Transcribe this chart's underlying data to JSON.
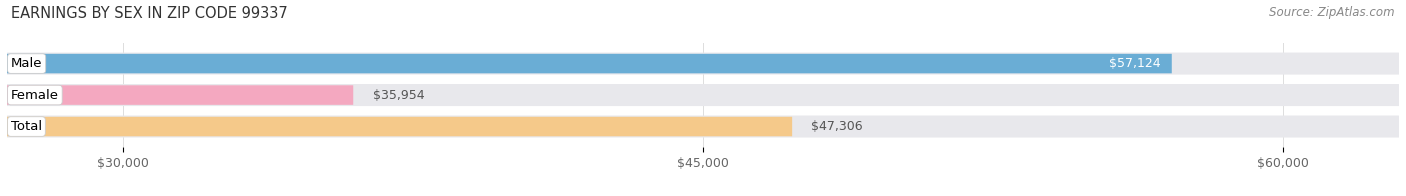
{
  "title": "EARNINGS BY SEX IN ZIP CODE 99337",
  "source": "Source: ZipAtlas.com",
  "categories": [
    "Male",
    "Female",
    "Total"
  ],
  "values": [
    57124,
    35954,
    47306
  ],
  "bar_colors": [
    "#6aadd5",
    "#f4a8c0",
    "#f5c98a"
  ],
  "value_labels": [
    "$57,124",
    "$35,954",
    "$47,306"
  ],
  "value_inside": [
    true,
    false,
    false
  ],
  "xlim": [
    27000,
    63000
  ],
  "xticks": [
    30000,
    45000,
    60000
  ],
  "xtick_labels": [
    "$30,000",
    "$45,000",
    "$60,000"
  ],
  "bar_height": 0.62,
  "background_color": "#ffffff",
  "bar_bg_color": "#e8e8ec",
  "title_fontsize": 10.5,
  "source_fontsize": 8.5,
  "label_fontsize": 9.5,
  "value_fontsize": 9,
  "tick_fontsize": 9
}
